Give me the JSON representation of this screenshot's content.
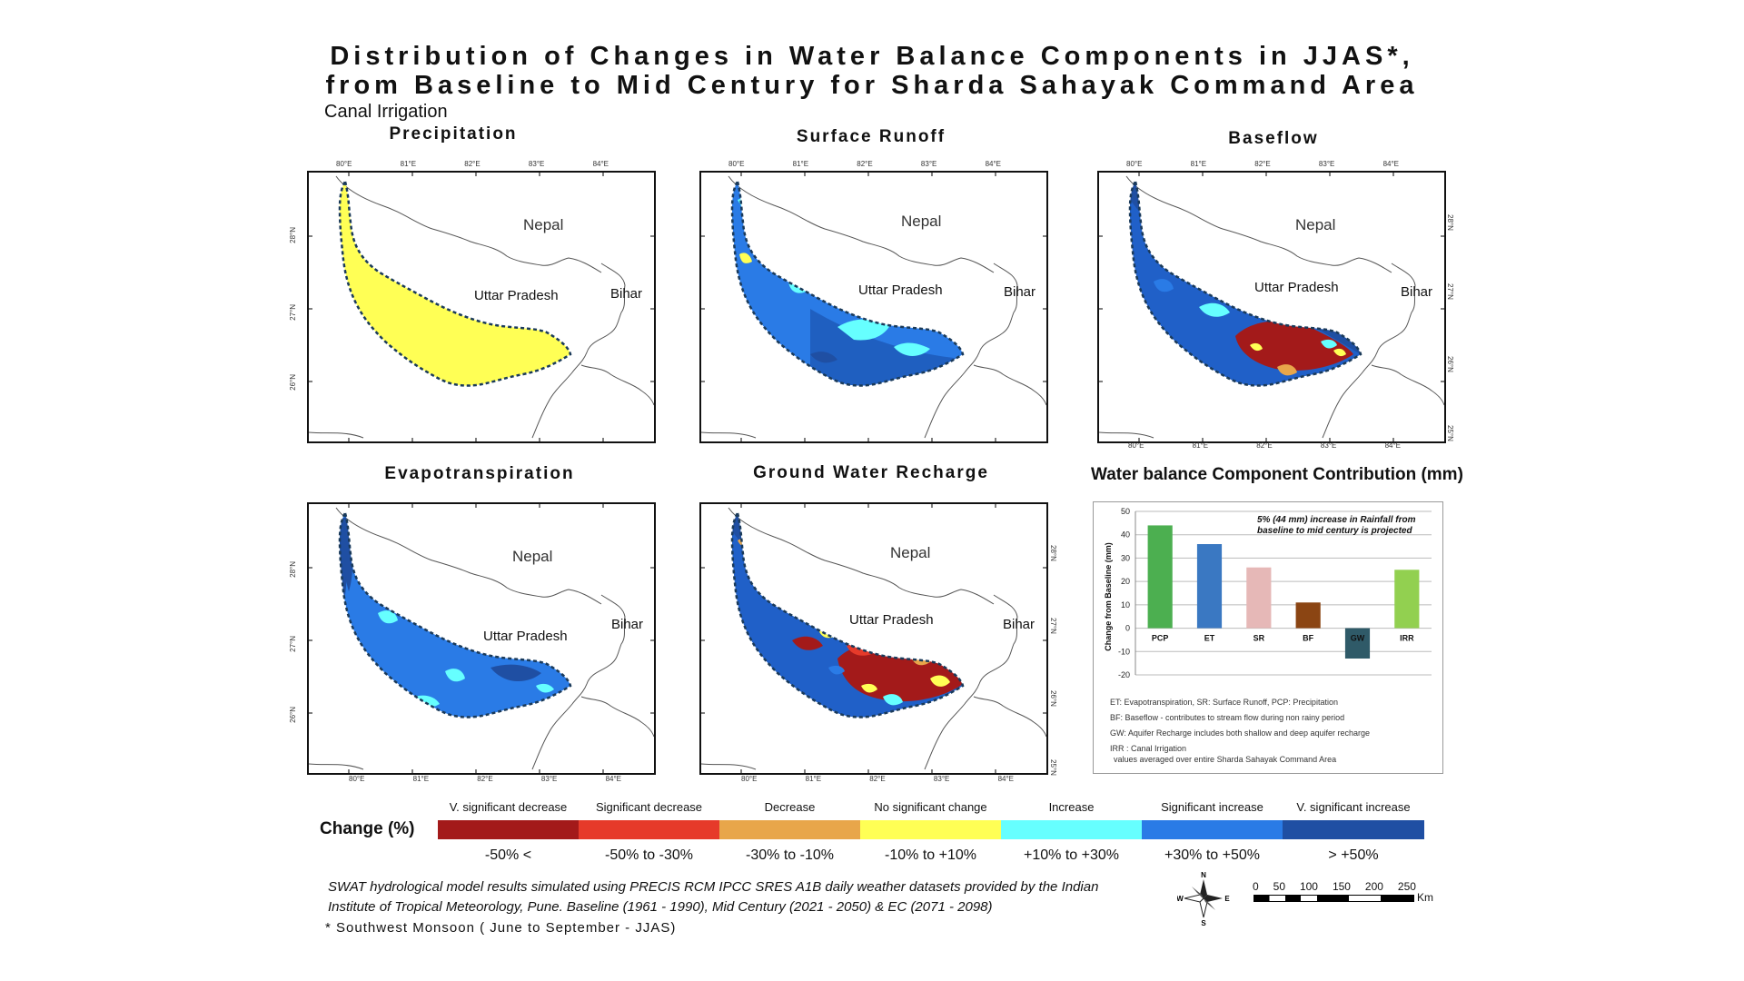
{
  "title_line1": "Distribution of Changes in Water Balance Components in JJAS*,",
  "title_line2": "from Baseline to Mid Century for Sharda Sahayak Command Area",
  "subtitle": "Canal Irrigation",
  "maps": [
    {
      "title": "Precipitation",
      "labels": {
        "nepal": "Nepal",
        "up": "Uttar Pradesh",
        "bihar": "Bihar"
      }
    },
    {
      "title": "Surface Runoff",
      "labels": {
        "nepal": "Nepal",
        "up": "Uttar Pradesh",
        "bihar": "Bihar"
      }
    },
    {
      "title": "Baseflow",
      "labels": {
        "nepal": "Nepal",
        "up": "Uttar Pradesh",
        "bihar": "Bihar"
      }
    },
    {
      "title": "Evapotranspiration",
      "labels": {
        "nepal": "Nepal",
        "up": "Uttar Pradesh",
        "bihar": "Bihar"
      }
    },
    {
      "title": "Ground Water Recharge",
      "labels": {
        "nepal": "Nepal",
        "up": "Uttar Pradesh",
        "bihar": "Bihar"
      }
    }
  ],
  "lon_ticks": [
    "80°E",
    "81°E",
    "82°E",
    "83°E",
    "84°E"
  ],
  "lat_ticks": [
    "28°N",
    "27°N",
    "26°N",
    "25°N"
  ],
  "chart_data": {
    "type": "bar",
    "title": "Water balance Component Contribution (mm)",
    "categories": [
      "PCP",
      "ET",
      "SR",
      "BF",
      "GW",
      "IRR"
    ],
    "values": [
      44,
      36,
      26,
      11,
      -13,
      25
    ],
    "colors": [
      "#4caf50",
      "#3a78c2",
      "#e6b8b7",
      "#8b4513",
      "#2f5a68",
      "#92d050"
    ],
    "ylabel": "Change from Baseline (mm)",
    "ylim": [
      -20,
      50
    ],
    "yticks": [
      50,
      40,
      30,
      20,
      10,
      0,
      -10,
      -20
    ],
    "grid": true,
    "annotation": "5% (44 mm) increase in Rainfall from baseline to mid century is projected",
    "notes": [
      "ET: Evapotranspiration, SR: Surface Runoff, PCP: Precipitation",
      "BF: Baseflow - contributes to stream flow during non rainy period",
      "GW: Aquifer Recharge includes both shallow and deep aquifer recharge",
      "IRR : Canal Irrigation",
      "values averaged over entire  Sharda Sahayak Command Area"
    ]
  },
  "legend": {
    "title": "Change (%)",
    "classes": [
      {
        "label": "V. significant decrease",
        "range": "-50% <",
        "color": "#a31a1a"
      },
      {
        "label": "Significant decrease",
        "range": "-50% to -30%",
        "color": "#e63a2a"
      },
      {
        "label": "Decrease",
        "range": "-30% to -10%",
        "color": "#e8a64a"
      },
      {
        "label": "No significant change",
        "range": "-10% to +10%",
        "color": "#ffff55"
      },
      {
        "label": "Increase",
        "range": "+10% to +30%",
        "color": "#66ffff"
      },
      {
        "label": "Significant increase",
        "range": "+30% to +50%",
        "color": "#2a7be6"
      },
      {
        "label": "V. significant increase",
        "range": "> +50%",
        "color": "#1f4fa3"
      }
    ]
  },
  "scale_bar": {
    "ticks": [
      "0",
      "50",
      "100",
      "150",
      "200",
      "250"
    ],
    "unit": "Km"
  },
  "footnote_line1": "SWAT hydrological model results simulated using PRECIS RCM IPCC SRES A1B daily weather datasets provided by the Indian",
  "footnote_line2": "Institute of Tropical Meteorology, Pune. Baseline (1961 - 1990), Mid Century (2021 - 2050) & EC (2071 - 2098)",
  "footnote_line3": "* Southwest Monsoon ( June to September - JJAS)"
}
